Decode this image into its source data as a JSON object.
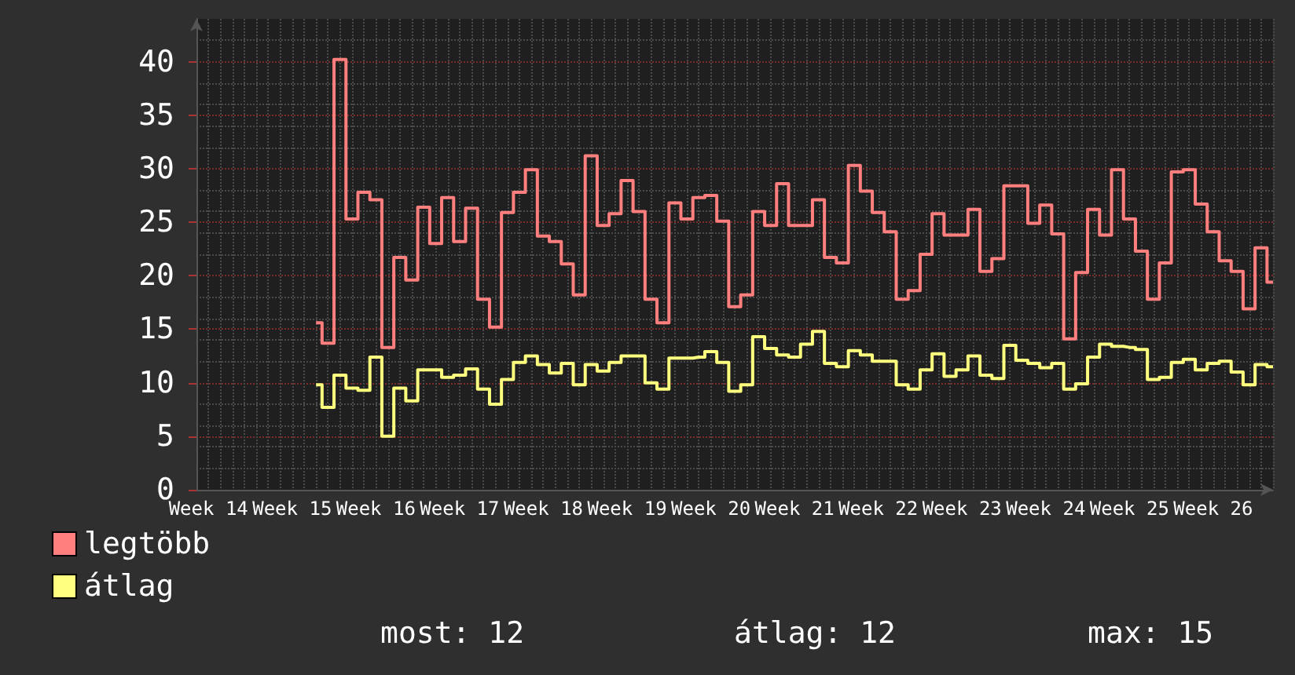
{
  "chart_data": {
    "type": "step",
    "ylim": [
      0,
      44
    ],
    "yticks": [
      0,
      5,
      10,
      15,
      20,
      25,
      30,
      35,
      40
    ],
    "categories": [
      null,
      "Week 14",
      null,
      null,
      null,
      null,
      null,
      null,
      "Week 15",
      null,
      null,
      null,
      null,
      null,
      null,
      "Week 16",
      null,
      null,
      null,
      null,
      null,
      null,
      "Week 17",
      null,
      null,
      null,
      null,
      null,
      null,
      "Week 18",
      null,
      null,
      null,
      null,
      null,
      null,
      "Week 19",
      null,
      null,
      null,
      null,
      null,
      null,
      "Week 20",
      null,
      null,
      null,
      null,
      null,
      null,
      "Week 21",
      null,
      null,
      null,
      null,
      null,
      null,
      "Week 22",
      null,
      null,
      null,
      null,
      null,
      null,
      "Week 23",
      null,
      null,
      null,
      null,
      null,
      null,
      "Week 24",
      null,
      null,
      null,
      null,
      null,
      null,
      "Week 25",
      null,
      null,
      null,
      null,
      null,
      null,
      "Week 26",
      null,
      null,
      null,
      null,
      null
    ],
    "series": [
      {
        "name": "legtöbb",
        "color": "#ff7f7f",
        "values": [
          null,
          null,
          null,
          null,
          null,
          null,
          null,
          null,
          null,
          null,
          15.6,
          13.7,
          40.2,
          25.3,
          27.8,
          27.1,
          13.3,
          21.7,
          19.6,
          26.4,
          23.0,
          27.3,
          23.2,
          26.3,
          17.8,
          15.2,
          25.9,
          27.8,
          29.9,
          23.7,
          23.2,
          21.1,
          18.2,
          31.2,
          24.7,
          25.8,
          28.9,
          26.0,
          17.8,
          15.6,
          26.8,
          25.3,
          27.3,
          27.5,
          25.1,
          17.1,
          18.2,
          26.0,
          24.7,
          28.6,
          24.7,
          24.7,
          27.1,
          21.7,
          21.2,
          30.3,
          27.9,
          25.9,
          24.1,
          17.8,
          18.6,
          22.0,
          25.8,
          23.8,
          23.8,
          26.2,
          20.4,
          21.6,
          28.4,
          28.4,
          24.9,
          26.6,
          23.9,
          14.1,
          20.3,
          26.2,
          23.8,
          29.9,
          25.3,
          22.3,
          17.8,
          21.2,
          29.7,
          29.9,
          26.7,
          24.1,
          21.4,
          20.4,
          16.9,
          22.6,
          19.4
        ]
      },
      {
        "name": "átlag",
        "color": "#ffff7f",
        "values": [
          null,
          null,
          null,
          null,
          null,
          null,
          null,
          null,
          null,
          null,
          9.8,
          7.7,
          10.7,
          9.5,
          9.3,
          12.4,
          5.0,
          9.5,
          8.3,
          11.2,
          11.2,
          10.5,
          10.7,
          11.3,
          9.4,
          8.0,
          10.3,
          11.9,
          12.5,
          11.7,
          10.9,
          11.8,
          9.8,
          11.7,
          11.1,
          11.9,
          12.5,
          12.5,
          10.0,
          9.4,
          12.3,
          12.3,
          12.4,
          12.9,
          11.9,
          9.2,
          9.8,
          14.3,
          13.2,
          12.6,
          12.4,
          13.6,
          14.8,
          11.8,
          11.5,
          13.0,
          12.6,
          12.0,
          12.0,
          9.8,
          9.4,
          11.2,
          12.7,
          10.6,
          11.2,
          12.5,
          10.7,
          10.4,
          13.5,
          12.1,
          11.8,
          11.4,
          11.8,
          9.4,
          9.9,
          12.4,
          13.6,
          13.4,
          13.3,
          13.1,
          10.3,
          10.5,
          11.9,
          12.2,
          11.2,
          11.8,
          12.0,
          11.0,
          9.8,
          11.7,
          11.5
        ]
      }
    ],
    "grid": true,
    "legend": "bottom left",
    "marker": "none",
    "line_style": "solid",
    "annotations": [
      "most: 12",
      "átlag: 12",
      "max: 15"
    ]
  }
}
